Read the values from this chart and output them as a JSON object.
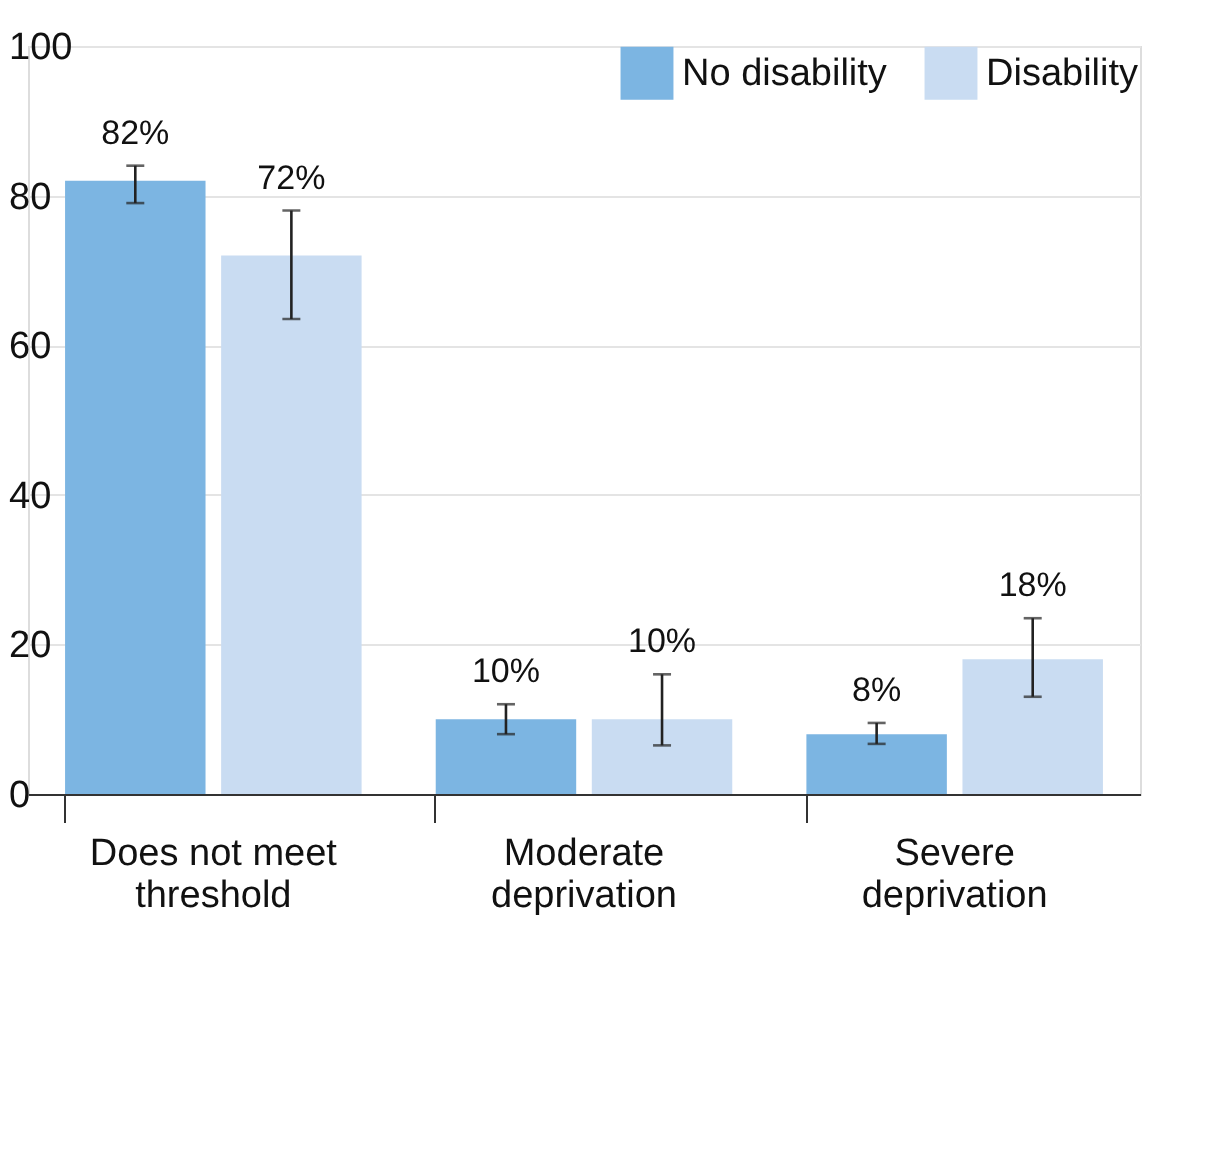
{
  "chart_data": {
    "type": "bar",
    "categories": [
      "Does not meet threshold",
      "Moderate deprivation",
      "Severe deprivation"
    ],
    "series": [
      {
        "name": "No disability",
        "color": "#7cb5e2",
        "values": [
          82,
          10,
          8
        ],
        "errors": [
          [
            79,
            84
          ],
          [
            8,
            12
          ],
          [
            6.7,
            9.5
          ]
        ],
        "value_labels": [
          "82%",
          "10%",
          "8%"
        ]
      },
      {
        "name": "Disability",
        "color": "#c9dcf2",
        "values": [
          72,
          10,
          18
        ],
        "errors": [
          [
            63.5,
            78
          ],
          [
            6.5,
            16
          ],
          [
            13,
            23.5
          ]
        ],
        "value_labels": [
          "72%",
          "10%",
          "18%"
        ]
      }
    ],
    "ylim": [
      0,
      100
    ],
    "yticks": [
      0,
      20,
      40,
      60,
      80,
      100
    ],
    "grid": "y",
    "legend": "top right"
  }
}
